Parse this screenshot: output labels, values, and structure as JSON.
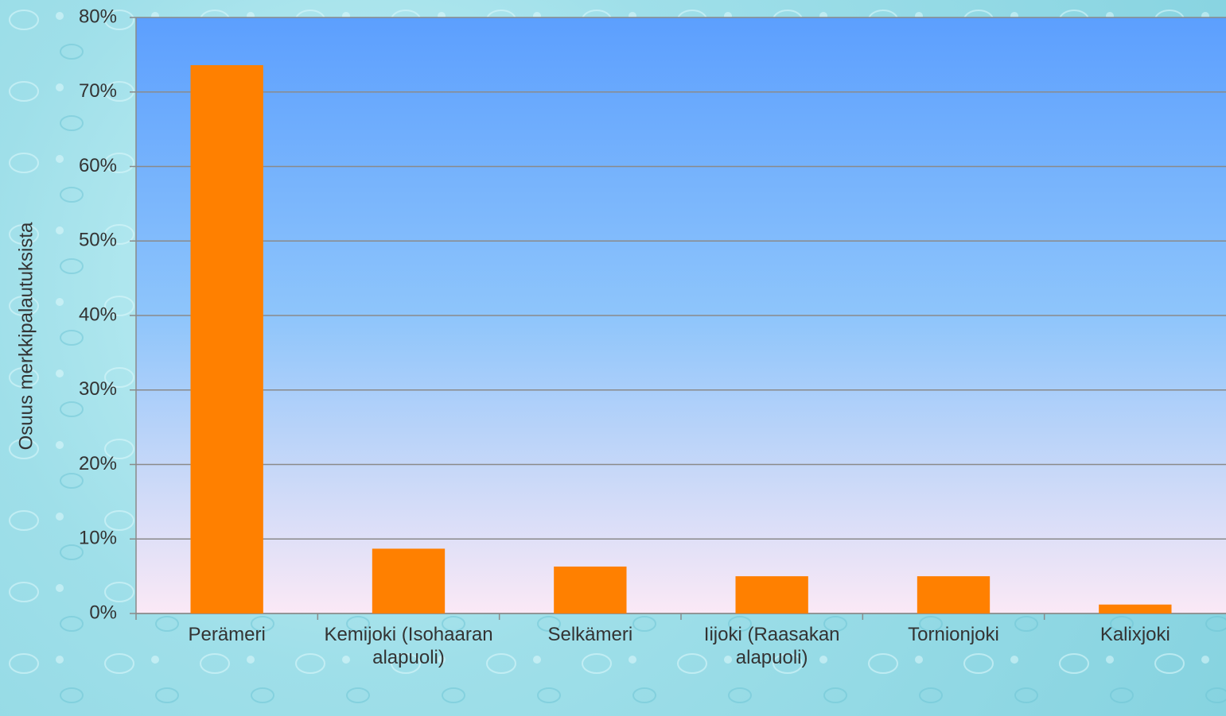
{
  "chart_data": {
    "type": "bar",
    "y_label": "Osuus merkkipalautuksista",
    "categories": [
      "Perämeri",
      "Kemijoki (Isohaaran alapuoli)",
      "Selkämeri",
      "Iijoki (Raasakan alapuoli)",
      "Tornionjoki",
      "Kalixjoki"
    ],
    "values": [
      73.6,
      8.7,
      6.3,
      5.0,
      5.0,
      1.2
    ],
    "color": "#ff8000",
    "ylim": [
      0,
      80
    ],
    "yticks": [
      {
        "value": 0,
        "label": "0%"
      },
      {
        "value": 10,
        "label": "10%"
      },
      {
        "value": 20,
        "label": "20%"
      },
      {
        "value": 30,
        "label": "30%"
      },
      {
        "value": 40,
        "label": "40%"
      },
      {
        "value": 50,
        "label": "50%"
      },
      {
        "value": 60,
        "label": "60%"
      },
      {
        "value": 70,
        "label": "70%"
      },
      {
        "value": 80,
        "label": "80%"
      }
    ],
    "grid": true
  }
}
